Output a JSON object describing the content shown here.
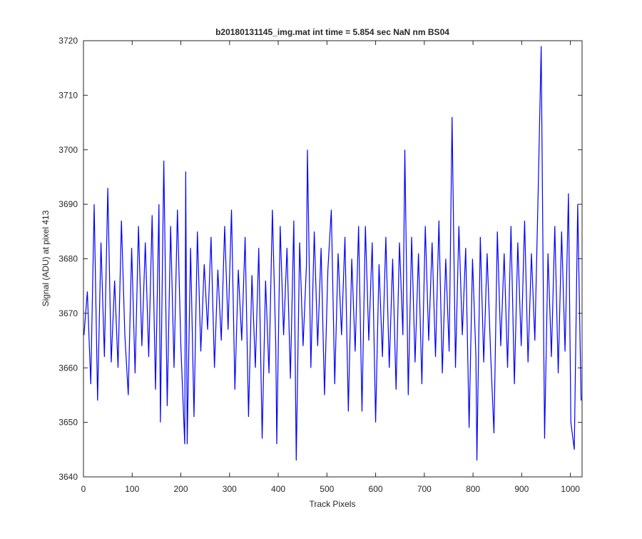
{
  "chart_data": {
    "type": "line",
    "title": "b20180131145_img.mat int time = 5.854 sec  NaN nm BS04",
    "x_label": "Track Pixels",
    "y_label": "Signal (ADU) at pixel 413",
    "x": [
      1,
      8,
      15,
      22,
      29,
      36,
      43,
      50,
      57,
      64,
      71,
      78,
      85,
      92,
      99,
      106,
      113,
      120,
      127,
      134,
      141,
      148,
      155,
      158,
      165,
      172,
      179,
      186,
      193,
      200,
      208,
      210,
      213,
      220,
      227,
      234,
      241,
      248,
      255,
      262,
      269,
      276,
      283,
      290,
      297,
      304,
      311,
      318,
      325,
      332,
      339,
      346,
      353,
      360,
      367,
      374,
      381,
      388,
      395,
      397,
      404,
      411,
      418,
      425,
      432,
      437,
      444,
      451,
      458,
      460,
      467,
      474,
      481,
      488,
      495,
      502,
      509,
      516,
      523,
      530,
      537,
      544,
      551,
      558,
      565,
      572,
      579,
      586,
      593,
      600,
      607,
      614,
      621,
      628,
      635,
      642,
      649,
      656,
      660,
      667,
      674,
      681,
      688,
      695,
      702,
      709,
      716,
      723,
      730,
      737,
      744,
      751,
      757,
      764,
      771,
      778,
      785,
      792,
      799,
      806,
      808,
      815,
      822,
      829,
      836,
      843,
      850,
      857,
      864,
      871,
      878,
      885,
      892,
      899,
      906,
      913,
      920,
      927,
      934,
      940,
      947,
      954,
      961,
      968,
      975,
      982,
      989,
      996,
      1001,
      1008,
      1015,
      1022
    ],
    "series": [
      {
        "color": "#0000ff",
        "values": [
          3666,
          3674,
          3657,
          3690,
          3654,
          3683,
          3662,
          3693,
          3661,
          3676,
          3660,
          3687,
          3666,
          3655,
          3682,
          3659,
          3686,
          3664,
          3683,
          3662,
          3688,
          3656,
          3690,
          3650,
          3698,
          3653,
          3686,
          3660,
          3689,
          3664,
          3646,
          3696,
          3646,
          3682,
          3651,
          3685,
          3663,
          3679,
          3667,
          3684,
          3660,
          3678,
          3665,
          3686,
          3667,
          3689,
          3656,
          3678,
          3665,
          3684,
          3651,
          3677,
          3660,
          3682,
          3647,
          3676,
          3659,
          3689,
          3664,
          3646,
          3686,
          3666,
          3682,
          3658,
          3687,
          3643,
          3683,
          3664,
          3679,
          3700,
          3660,
          3685,
          3664,
          3682,
          3655,
          3678,
          3689,
          3657,
          3681,
          3666,
          3684,
          3652,
          3680,
          3663,
          3686,
          3652,
          3686,
          3665,
          3683,
          3650,
          3679,
          3662,
          3684,
          3660,
          3680,
          3656,
          3683,
          3666,
          3700,
          3655,
          3684,
          3661,
          3681,
          3657,
          3686,
          3665,
          3683,
          3662,
          3687,
          3659,
          3680,
          3663,
          3706,
          3660,
          3686,
          3666,
          3682,
          3649,
          3680,
          3662,
          3643,
          3684,
          3661,
          3681,
          3663,
          3648,
          3685,
          3664,
          3681,
          3660,
          3686,
          3657,
          3683,
          3664,
          3687,
          3661,
          3681,
          3665,
          3693,
          3719,
          3647,
          3681,
          3662,
          3686,
          3659,
          3685,
          3663,
          3692,
          3650,
          3645,
          3690,
          3654
        ]
      }
    ],
    "xlim": [
      0,
      1024
    ],
    "ylim": [
      3640,
      3720
    ],
    "xticks": [
      0,
      100,
      200,
      300,
      400,
      500,
      600,
      700,
      800,
      900,
      1000
    ],
    "yticks": [
      3640,
      3650,
      3660,
      3670,
      3680,
      3690,
      3700,
      3710,
      3720
    ]
  }
}
